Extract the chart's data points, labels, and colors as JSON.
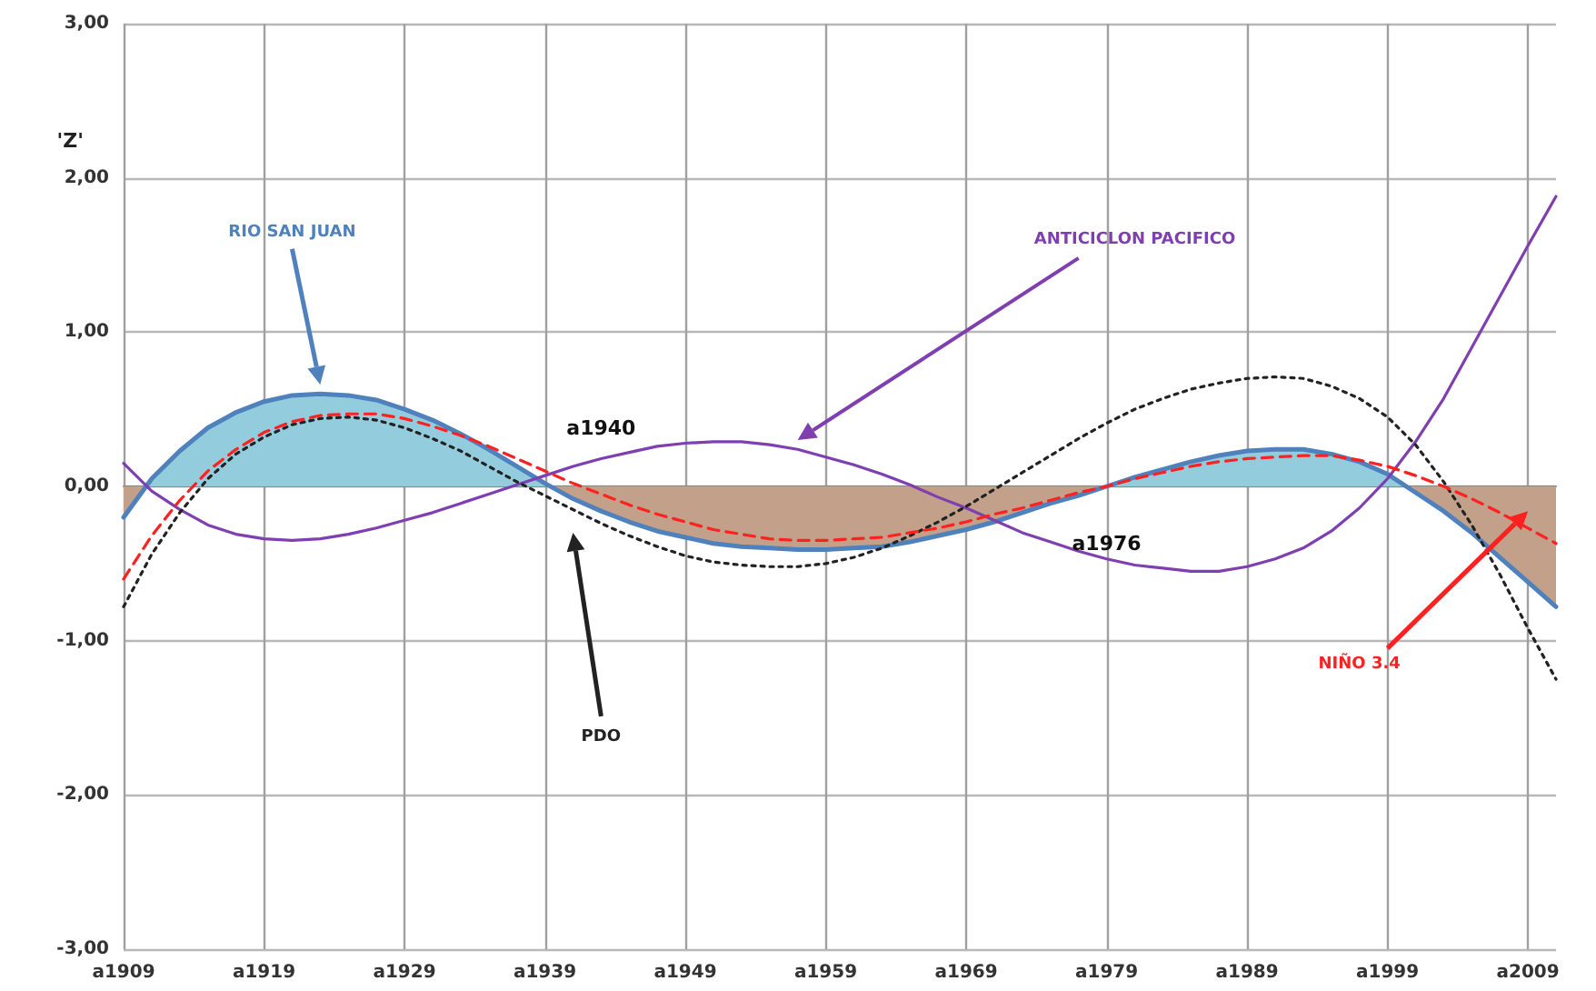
{
  "chart_data": {
    "type": "line",
    "ylabel": "'Z'",
    "categories": [
      "a1909",
      null,
      null,
      null,
      null,
      "a1919",
      null,
      null,
      null,
      null,
      "a1929",
      null,
      null,
      null,
      null,
      "a1939",
      null,
      null,
      null,
      null,
      "a1949",
      null,
      null,
      null,
      null,
      "a1959",
      null,
      null,
      null,
      null,
      "a1969",
      null,
      null,
      null,
      null,
      "a1979",
      null,
      null,
      null,
      null,
      "a1989",
      null,
      null,
      null,
      null,
      "a1999",
      null,
      null,
      null,
      null,
      "a2009",
      null
    ],
    "series": [
      {
        "name": "RIO SAN JUAN",
        "type": "area",
        "color": "#4f81bd",
        "line_style": "solid",
        "values": [
          -0.2,
          0.05,
          0.23,
          0.38,
          0.48,
          0.55,
          0.59,
          0.6,
          0.59,
          0.56,
          0.5,
          0.43,
          0.34,
          0.24,
          0.13,
          0.02,
          -0.08,
          -0.16,
          -0.23,
          -0.29,
          -0.33,
          -0.37,
          -0.39,
          -0.4,
          -0.41,
          -0.41,
          -0.4,
          -0.39,
          -0.36,
          -0.32,
          -0.28,
          -0.23,
          -0.17,
          -0.11,
          -0.06,
          0.0,
          0.06,
          0.11,
          0.16,
          0.2,
          0.23,
          0.24,
          0.24,
          0.21,
          0.16,
          0.08,
          -0.04,
          -0.16,
          -0.3,
          -0.46,
          -0.62,
          -0.78
        ]
      },
      {
        "name": "ANTICICLON PACIFICO",
        "color": "#7f3fb0",
        "line_style": "solid",
        "values": [
          0.15,
          -0.03,
          -0.15,
          -0.25,
          -0.31,
          -0.34,
          -0.35,
          -0.34,
          -0.31,
          -0.27,
          -0.22,
          -0.17,
          -0.11,
          -0.05,
          0.01,
          0.07,
          0.13,
          0.18,
          0.22,
          0.26,
          0.28,
          0.29,
          0.29,
          0.27,
          0.24,
          0.19,
          0.14,
          0.08,
          0.01,
          -0.07,
          -0.14,
          -0.22,
          -0.3,
          -0.36,
          -0.42,
          -0.47,
          -0.51,
          -0.53,
          -0.55,
          -0.55,
          -0.52,
          -0.47,
          -0.4,
          -0.29,
          -0.14,
          0.05,
          0.29,
          0.57,
          0.9,
          1.23,
          1.56,
          1.88
        ]
      },
      {
        "name": "PDO",
        "color": "#222222",
        "line_style": "dotted",
        "values": [
          -0.78,
          -0.44,
          -0.17,
          0.05,
          0.21,
          0.32,
          0.4,
          0.44,
          0.45,
          0.43,
          0.38,
          0.31,
          0.23,
          0.13,
          0.03,
          -0.06,
          -0.15,
          -0.24,
          -0.32,
          -0.39,
          -0.45,
          -0.49,
          -0.51,
          -0.52,
          -0.52,
          -0.5,
          -0.46,
          -0.4,
          -0.32,
          -0.23,
          -0.13,
          -0.02,
          0.09,
          0.2,
          0.31,
          0.41,
          0.5,
          0.57,
          0.63,
          0.67,
          0.7,
          0.71,
          0.7,
          0.65,
          0.57,
          0.45,
          0.27,
          0.03,
          -0.25,
          -0.57,
          -0.92,
          -1.25
        ]
      },
      {
        "name": "NIÑO 3.4",
        "color": "#ff2020",
        "line_style": "dashed",
        "values": [
          -0.6,
          -0.32,
          -0.09,
          0.1,
          0.24,
          0.35,
          0.42,
          0.46,
          0.47,
          0.47,
          0.44,
          0.39,
          0.33,
          0.26,
          0.18,
          0.1,
          0.02,
          -0.05,
          -0.12,
          -0.18,
          -0.23,
          -0.28,
          -0.31,
          -0.34,
          -0.35,
          -0.35,
          -0.34,
          -0.33,
          -0.3,
          -0.27,
          -0.23,
          -0.18,
          -0.14,
          -0.09,
          -0.04,
          0.0,
          0.05,
          0.09,
          0.13,
          0.16,
          0.18,
          0.19,
          0.2,
          0.2,
          0.17,
          0.13,
          0.07,
          0.0,
          -0.08,
          -0.17,
          -0.27,
          -0.37
        ]
      }
    ],
    "annotations": [
      "a1940",
      "a1976"
    ],
    "ylim": [
      -3,
      3
    ],
    "yticks": [
      {
        "value": -3,
        "label": "-3,00"
      },
      {
        "value": -2,
        "label": "-2,00"
      },
      {
        "value": -1,
        "label": "-1,00"
      },
      {
        "value": 0,
        "label": "0,00"
      },
      {
        "value": 1,
        "label": "1,00"
      },
      {
        "value": 2,
        "label": "2,00"
      },
      {
        "value": 3,
        "label": "3,00"
      }
    ],
    "grid": true,
    "legend": false,
    "marker": "none"
  }
}
